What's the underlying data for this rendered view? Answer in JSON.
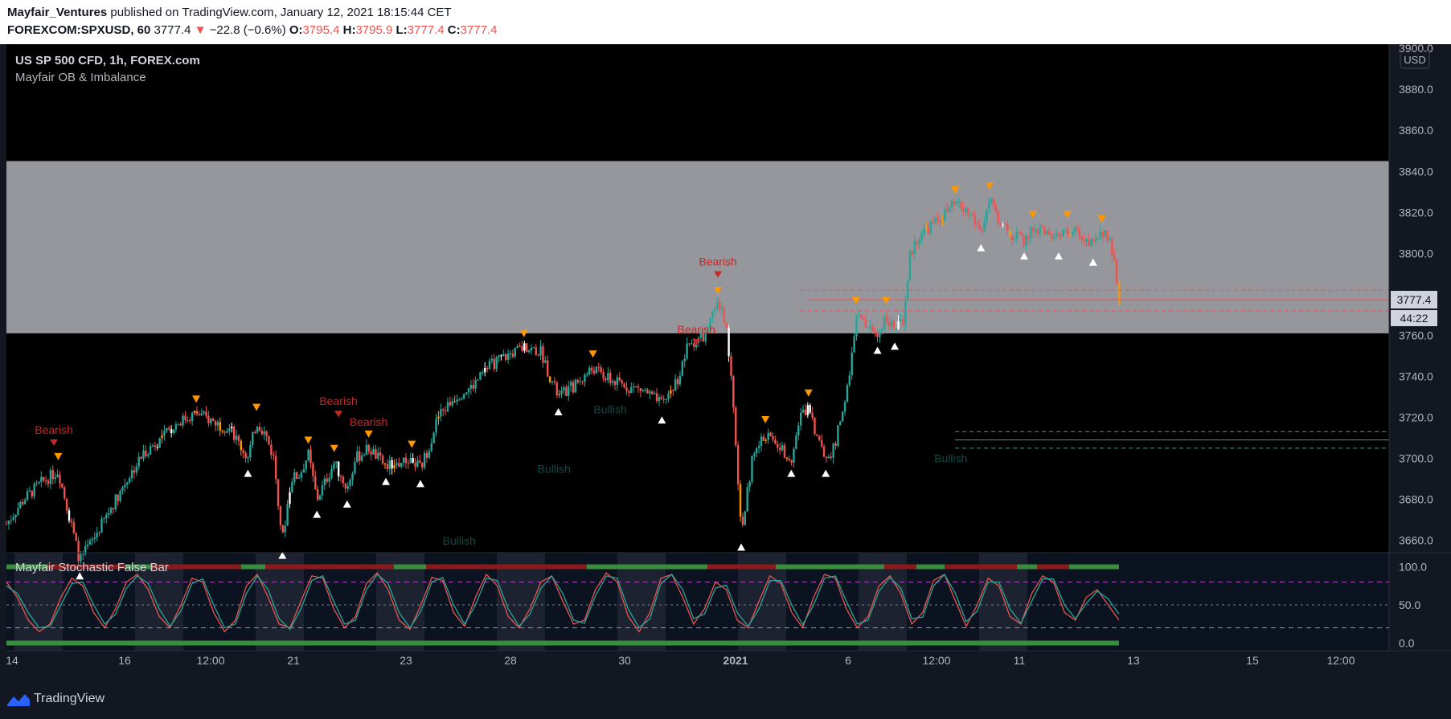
{
  "header": {
    "author": "Mayfair_Ventures",
    "published": "published on TradingView.com, January 12, 2021 18:15:44 CET",
    "symbol": "FOREXCOM:SPXUSD, 60",
    "last": "3777.4",
    "change": "−22.8 (−0.6%)",
    "o_label": "O:",
    "o": "3795.4",
    "h_label": "H:",
    "h": "3795.9",
    "l_label": "L:",
    "l": "3777.4",
    "c_label": "C:",
    "c": "3777.4"
  },
  "chart_title": "US SP 500 CFD, 1h, FOREX.com",
  "indicator_name": "Mayfair OB & Imbalance",
  "oscillator_name": "Mayfair Stochastic False Bar",
  "footer": {
    "brand": "TradingView"
  },
  "colors": {
    "background": "#000000",
    "frame": "#131722",
    "bull": "#26a69a",
    "bear": "#ef5350",
    "zone": "#a1a3a8",
    "warning": "#ff9800",
    "bearish_label": "#b71c1c",
    "bullish_label": "#0e3a36"
  },
  "chart_data": [
    {
      "type": "candlestick",
      "title": "US SP 500 CFD, 1h, FOREX.com",
      "currency": "USD",
      "ylim": [
        3650,
        3900
      ],
      "y_ticks": [
        3660,
        3680,
        3700,
        3720,
        3740,
        3760,
        3780,
        3800,
        3820,
        3840,
        3860,
        3880,
        3900
      ],
      "x_ticks": [
        "14",
        "16",
        "12:00",
        "21",
        "23",
        "28",
        "30",
        "2021",
        "6",
        "12:00",
        "11",
        "13",
        "15",
        "12:00"
      ],
      "last_price": 3777.4,
      "countdown": "44:22",
      "close_path": [
        [
          0,
          3668
        ],
        [
          2,
          3680
        ],
        [
          4,
          3688
        ],
        [
          6,
          3694
        ],
        [
          7.5,
          3668
        ],
        [
          8.5,
          3650
        ],
        [
          10,
          3660
        ],
        [
          12,
          3675
        ],
        [
          14,
          3690
        ],
        [
          16,
          3703
        ],
        [
          18,
          3710
        ],
        [
          20,
          3718
        ],
        [
          22,
          3722
        ],
        [
          24,
          3718
        ],
        [
          26,
          3714
        ],
        [
          28,
          3700
        ],
        [
          29,
          3718
        ],
        [
          30,
          3712
        ],
        [
          31,
          3700
        ],
        [
          32,
          3660
        ],
        [
          33,
          3690
        ],
        [
          34,
          3692
        ],
        [
          35,
          3702
        ],
        [
          36,
          3680
        ],
        [
          38,
          3698
        ],
        [
          39.5,
          3685
        ],
        [
          40.5,
          3700
        ],
        [
          42,
          3705
        ],
        [
          44,
          3696
        ],
        [
          46,
          3698
        ],
        [
          47,
          3700
        ],
        [
          48,
          3695
        ],
        [
          49,
          3706
        ],
        [
          50,
          3720
        ],
        [
          52,
          3730
        ],
        [
          54,
          3735
        ],
        [
          56,
          3745
        ],
        [
          58,
          3750
        ],
        [
          60,
          3754
        ],
        [
          62,
          3752
        ],
        [
          63,
          3740
        ],
        [
          64,
          3730
        ],
        [
          66,
          3736
        ],
        [
          68,
          3744
        ],
        [
          70,
          3738
        ],
        [
          72,
          3735
        ],
        [
          74,
          3733
        ],
        [
          76,
          3726
        ],
        [
          78,
          3740
        ],
        [
          79,
          3755
        ],
        [
          81,
          3760
        ],
        [
          82.5,
          3775
        ],
        [
          83.5,
          3766
        ],
        [
          84.5,
          3712
        ],
        [
          85.2,
          3664
        ],
        [
          86.5,
          3700
        ],
        [
          88,
          3712
        ],
        [
          89.5,
          3706
        ],
        [
          91,
          3700
        ],
        [
          92,
          3720
        ],
        [
          93,
          3725
        ],
        [
          94,
          3710
        ],
        [
          95,
          3700
        ],
        [
          96,
          3705
        ],
        [
          97,
          3725
        ],
        [
          97.8,
          3740
        ],
        [
          98.5,
          3770
        ],
        [
          99.5,
          3765
        ],
        [
          101,
          3760
        ],
        [
          102,
          3770
        ],
        [
          103,
          3762
        ],
        [
          104,
          3768
        ],
        [
          104.8,
          3800
        ],
        [
          106,
          3810
        ],
        [
          108,
          3816
        ],
        [
          110,
          3824
        ],
        [
          112,
          3818
        ],
        [
          113,
          3810
        ],
        [
          114,
          3826
        ],
        [
          115,
          3814
        ],
        [
          117,
          3808
        ],
        [
          118,
          3806
        ],
        [
          119,
          3812
        ],
        [
          121,
          3810
        ],
        [
          122,
          3806
        ],
        [
          123,
          3812
        ],
        [
          125,
          3808
        ],
        [
          126,
          3803
        ],
        [
          127,
          3810
        ],
        [
          128,
          3808
        ],
        [
          129,
          3777.4
        ]
      ],
      "supply_zone": {
        "from": 3761,
        "to": 3845
      },
      "level_lines": [
        {
          "value": 3782,
          "style": "dashed",
          "color": "#ef5350"
        },
        {
          "value": 3777.4,
          "style": "solid",
          "color": "#ef5350"
        },
        {
          "value": 3772,
          "style": "dashed",
          "color": "#ef5350"
        },
        {
          "value": 3713,
          "style": "dashed",
          "color": "#26a69a"
        },
        {
          "value": 3709,
          "style": "solid",
          "color": "#26a69a"
        },
        {
          "value": 3705,
          "style": "dashed",
          "color": "#26a69a"
        }
      ],
      "annotations": [
        {
          "text": "Bearish",
          "x": 5.5,
          "y": 3712
        },
        {
          "text": "Bearish",
          "x": 38.5,
          "y": 3726
        },
        {
          "text": "Bearish",
          "x": 42,
          "y": 3716
        },
        {
          "text": "Bearish",
          "x": 82.5,
          "y": 3794
        },
        {
          "text": "Bearish",
          "x": 80,
          "y": 3761
        },
        {
          "text": "Bullish",
          "x": 70,
          "y": 3722
        },
        {
          "text": "Bullish",
          "x": 63.5,
          "y": 3693
        },
        {
          "text": "Bullish",
          "x": 52.5,
          "y": 3658
        },
        {
          "text": "Bullish",
          "x": 109.5,
          "y": 3698
        }
      ]
    },
    {
      "type": "line",
      "title": "Mayfair Stochastic False Bar",
      "ylim": [
        -10,
        110
      ],
      "y_ticks": [
        0.0,
        50.0,
        100.0
      ],
      "levels": [
        80,
        50,
        20
      ],
      "series": [
        {
          "color": "#ef5350",
          "values": [
            80,
            60,
            30,
            15,
            25,
            60,
            85,
            75,
            40,
            20,
            45,
            80,
            90,
            70,
            35,
            20,
            50,
            85,
            80,
            40,
            15,
            30,
            75,
            90,
            60,
            25,
            20,
            55,
            88,
            85,
            45,
            20,
            35,
            78,
            92,
            70,
            30,
            18,
            50,
            86,
            82,
            40,
            22,
            60,
            90,
            75,
            35,
            20,
            45,
            80,
            88,
            55,
            25,
            30,
            70,
            92,
            80,
            35,
            15,
            40,
            85,
            90,
            60,
            25,
            45,
            80,
            70,
            30,
            20,
            55,
            88,
            78,
            40,
            20,
            60,
            90,
            85,
            45,
            20,
            35,
            75,
            88,
            65,
            25,
            40,
            82,
            90,
            55,
            22,
            50,
            85,
            75,
            35,
            25,
            65,
            88,
            80,
            40,
            30,
            60,
            70,
            50,
            30
          ]
        },
        {
          "color": "#26a69a",
          "values": [
            75,
            65,
            40,
            20,
            22,
            50,
            78,
            80,
            50,
            25,
            38,
            72,
            88,
            78,
            45,
            22,
            42,
            78,
            84,
            50,
            20,
            25,
            65,
            88,
            70,
            32,
            18,
            45,
            82,
            88,
            55,
            25,
            30,
            70,
            90,
            78,
            40,
            20,
            42,
            80,
            86,
            50,
            25,
            50,
            85,
            82,
            45,
            22,
            38,
            72,
            88,
            65,
            30,
            26,
            62,
            88,
            85,
            45,
            20,
            32,
            78,
            90,
            70,
            32,
            38,
            72,
            76,
            40,
            22,
            45,
            82,
            82,
            50,
            24,
            50,
            85,
            88,
            55,
            25,
            30,
            68,
            86,
            72,
            32,
            34,
            75,
            90,
            65,
            28,
            42,
            80,
            80,
            45,
            26,
            55,
            84,
            84,
            50,
            32,
            52,
            68,
            58,
            38
          ]
        }
      ]
    }
  ]
}
